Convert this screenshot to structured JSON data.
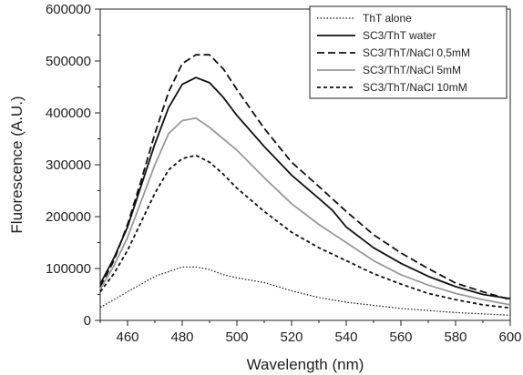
{
  "chart_data": {
    "type": "line",
    "title": "",
    "xlabel": "Wavelength (nm)",
    "ylabel": "Fluorescence (A.U.)",
    "xlim": [
      450,
      600
    ],
    "ylim": [
      0,
      600000
    ],
    "x_ticks": [
      460,
      480,
      500,
      520,
      540,
      560,
      580,
      600
    ],
    "y_ticks": [
      0,
      100000,
      200000,
      300000,
      400000,
      500000,
      600000
    ],
    "x_tick_labels": [
      "460",
      "480",
      "500",
      "520",
      "540",
      "560",
      "580",
      "600"
    ],
    "y_tick_labels": [
      "0",
      "100000",
      "200000",
      "300000",
      "400000",
      "500000",
      "600000"
    ],
    "grid": false,
    "legend_position": "top-right",
    "series": [
      {
        "name": "ThT alone",
        "color": "#111111",
        "dash": "dotted",
        "points": [
          [
            450,
            25000
          ],
          [
            460,
            55000
          ],
          [
            470,
            85000
          ],
          [
            480,
            103000
          ],
          [
            485,
            103000
          ],
          [
            490,
            98000
          ],
          [
            495,
            88000
          ],
          [
            500,
            82000
          ],
          [
            510,
            73000
          ],
          [
            520,
            57000
          ],
          [
            530,
            44000
          ],
          [
            540,
            35000
          ],
          [
            560,
            23000
          ],
          [
            580,
            15000
          ],
          [
            600,
            10000
          ]
        ]
      },
      {
        "name": "SC3/ThT water",
        "color": "#111111",
        "dash": "solid",
        "points": [
          [
            450,
            70000
          ],
          [
            455,
            120000
          ],
          [
            460,
            180000
          ],
          [
            465,
            260000
          ],
          [
            470,
            340000
          ],
          [
            475,
            410000
          ],
          [
            480,
            455000
          ],
          [
            485,
            468000
          ],
          [
            490,
            458000
          ],
          [
            495,
            430000
          ],
          [
            500,
            395000
          ],
          [
            510,
            335000
          ],
          [
            520,
            280000
          ],
          [
            530,
            235000
          ],
          [
            535,
            212000
          ],
          [
            540,
            180000
          ],
          [
            550,
            140000
          ],
          [
            560,
            110000
          ],
          [
            570,
            85000
          ],
          [
            580,
            65000
          ],
          [
            590,
            50000
          ],
          [
            600,
            42000
          ]
        ]
      },
      {
        "name": "SC3/ThT/NaCl 0,5mM",
        "color": "#111111",
        "dash": "dashed",
        "points": [
          [
            450,
            65000
          ],
          [
            455,
            115000
          ],
          [
            460,
            185000
          ],
          [
            465,
            270000
          ],
          [
            470,
            360000
          ],
          [
            475,
            440000
          ],
          [
            480,
            495000
          ],
          [
            485,
            512000
          ],
          [
            490,
            512000
          ],
          [
            495,
            485000
          ],
          [
            500,
            445000
          ],
          [
            510,
            370000
          ],
          [
            520,
            305000
          ],
          [
            530,
            258000
          ],
          [
            540,
            210000
          ],
          [
            550,
            165000
          ],
          [
            560,
            130000
          ],
          [
            570,
            100000
          ],
          [
            580,
            72000
          ],
          [
            590,
            55000
          ],
          [
            600,
            40000
          ]
        ]
      },
      {
        "name": "SC3/ThT/NaCl 5mM",
        "color": "#9a9a9a",
        "dash": "solid",
        "points": [
          [
            450,
            60000
          ],
          [
            455,
            105000
          ],
          [
            460,
            160000
          ],
          [
            465,
            230000
          ],
          [
            470,
            300000
          ],
          [
            475,
            360000
          ],
          [
            480,
            385000
          ],
          [
            485,
            390000
          ],
          [
            490,
            372000
          ],
          [
            495,
            350000
          ],
          [
            500,
            328000
          ],
          [
            510,
            275000
          ],
          [
            520,
            225000
          ],
          [
            530,
            185000
          ],
          [
            540,
            150000
          ],
          [
            550,
            115000
          ],
          [
            560,
            88000
          ],
          [
            570,
            68000
          ],
          [
            580,
            52000
          ],
          [
            590,
            40000
          ],
          [
            600,
            30000
          ]
        ]
      },
      {
        "name": "SC3/ThT/NaCl 10mM",
        "color": "#111111",
        "dash": "short-dashed",
        "points": [
          [
            450,
            55000
          ],
          [
            455,
            90000
          ],
          [
            460,
            135000
          ],
          [
            465,
            190000
          ],
          [
            470,
            245000
          ],
          [
            475,
            290000
          ],
          [
            480,
            312000
          ],
          [
            485,
            318000
          ],
          [
            490,
            305000
          ],
          [
            495,
            282000
          ],
          [
            500,
            255000
          ],
          [
            510,
            210000
          ],
          [
            520,
            170000
          ],
          [
            530,
            140000
          ],
          [
            540,
            115000
          ],
          [
            550,
            90000
          ],
          [
            560,
            70000
          ],
          [
            570,
            52000
          ],
          [
            580,
            40000
          ],
          [
            590,
            30000
          ],
          [
            600,
            24000
          ]
        ]
      }
    ]
  }
}
